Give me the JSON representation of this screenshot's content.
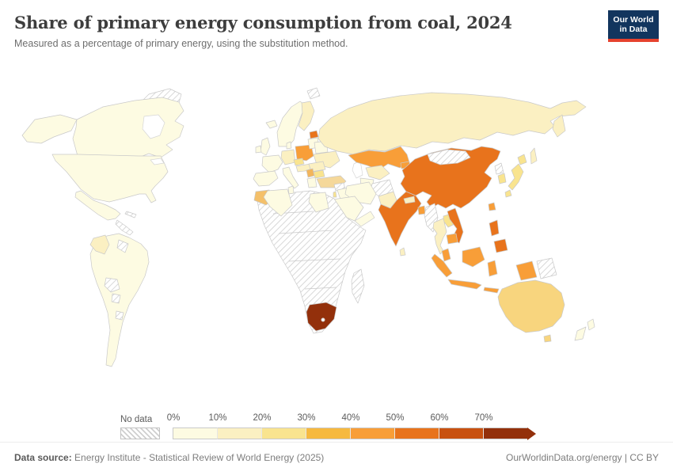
{
  "header": {
    "title": "Share of primary energy consumption from coal, 2024",
    "subtitle": "Measured as a percentage of primary energy, using the substitution method.",
    "logo": {
      "line1": "Our World",
      "line2": "in Data",
      "bg_color": "#12355e",
      "bar_color": "#e6422e"
    }
  },
  "legend": {
    "no_data_label": "No data",
    "bins": [
      {
        "tick": "0%",
        "range": "0-10%",
        "color": "#FDFBE2"
      },
      {
        "tick": "10%",
        "range": "10-20%",
        "color": "#FBF0C2"
      },
      {
        "tick": "20%",
        "range": "20-30%",
        "color": "#F9E48F"
      },
      {
        "tick": "30%",
        "range": "30-40%",
        "color": "#F6B93F"
      },
      {
        "tick": "40%",
        "range": "40-50%",
        "color": "#F89E38"
      },
      {
        "tick": "50%",
        "range": "50-60%",
        "color": "#E8731C"
      },
      {
        "tick": "60%",
        "range": "60-70%",
        "color": "#C85110"
      },
      {
        "tick": "70%",
        "range": "70%+",
        "color": "#93300B"
      }
    ]
  },
  "chart_data": {
    "type": "choropleth_map",
    "title": "Share of primary energy consumption from coal, 2024",
    "unit": "% of primary energy",
    "legend_bins": [
      "0-10%",
      "10-20%",
      "20-30%",
      "30-40%",
      "40-50%",
      "50-60%",
      "60-70%",
      "70%+",
      "No data"
    ],
    "countries": [
      {
        "id": "canada",
        "name": "Canada",
        "bin": "0-10%"
      },
      {
        "id": "usa",
        "name": "United States",
        "bin": "0-10%"
      },
      {
        "id": "alaska",
        "name": "United States (Alaska)",
        "bin": "0-10%"
      },
      {
        "id": "mexico",
        "name": "Mexico",
        "bin": "0-10%"
      },
      {
        "id": "greenland",
        "name": "Greenland",
        "bin": "No data"
      },
      {
        "id": "cuba",
        "name": "Cuba & Caribbean",
        "bin": "No data"
      },
      {
        "id": "central-america",
        "name": "Central America",
        "bin": "No data"
      },
      {
        "id": "south-america",
        "name": "South America (Brazil, Argentina, Peru, Chile, Ecuador, Venezuela)",
        "bin": "0-10%"
      },
      {
        "id": "colombia",
        "name": "Colombia",
        "bin": "10-20%"
      },
      {
        "id": "guyanas",
        "name": "Guyana & Suriname",
        "bin": "No data"
      },
      {
        "id": "bolivia",
        "name": "Bolivia",
        "bin": "No data"
      },
      {
        "id": "paraguay",
        "name": "Paraguay",
        "bin": "No data"
      },
      {
        "id": "uruguay",
        "name": "Uruguay",
        "bin": "No data"
      },
      {
        "id": "iceland",
        "name": "Iceland",
        "bin": "0-10%"
      },
      {
        "id": "norway-sweden",
        "name": "Norway & Sweden",
        "bin": "0-10%"
      },
      {
        "id": "finland",
        "name": "Finland",
        "bin": "10-20%"
      },
      {
        "id": "uk",
        "name": "United Kingdom",
        "bin": "0-10%"
      },
      {
        "id": "ireland",
        "name": "Ireland",
        "bin": "0-10%"
      },
      {
        "id": "denmark",
        "name": "Denmark",
        "bin": "0-10%"
      },
      {
        "id": "germany",
        "name": "Germany",
        "bin": "10-20%"
      },
      {
        "id": "france",
        "name": "France",
        "bin": "0-10%"
      },
      {
        "id": "iberia",
        "name": "Spain & Portugal",
        "bin": "0-10%"
      },
      {
        "id": "italy",
        "name": "Italy",
        "bin": "0-10%"
      },
      {
        "id": "poland",
        "name": "Poland",
        "bin": "40-50%"
      },
      {
        "id": "czechia",
        "name": "Czechia",
        "bin": "20-30%"
      },
      {
        "id": "slovakia-hungary",
        "name": "Slovakia, Hungary & Austria",
        "bin": "10-20%"
      },
      {
        "id": "estonia",
        "name": "Estonia",
        "bin": "50-60%"
      },
      {
        "id": "latvia-lithuania",
        "name": "Latvia & Lithuania",
        "bin": "0-10%"
      },
      {
        "id": "belarus",
        "name": "Belarus",
        "bin": "0-10%"
      },
      {
        "id": "ukraine",
        "name": "Ukraine",
        "bin": "10-20%"
      },
      {
        "id": "romania",
        "name": "Romania",
        "bin": "10-20%"
      },
      {
        "id": "serbia",
        "name": "Serbia",
        "bin": "30-40%",
        "color": "#F2B55C"
      },
      {
        "id": "bulgaria",
        "name": "Bulgaria",
        "bin": "20-30%"
      },
      {
        "id": "greece",
        "name": "Greece",
        "bin": "0-10%"
      },
      {
        "id": "turkey",
        "name": "Turkey",
        "bin": "20-30%",
        "color": "#F5D89A"
      },
      {
        "id": "russia",
        "name": "Russia",
        "bin": "10-20%"
      },
      {
        "id": "kazakhstan",
        "name": "Kazakhstan",
        "bin": "40-50%"
      },
      {
        "id": "uzbekistan",
        "name": "Uzbekistan",
        "bin": "10-20%"
      },
      {
        "id": "turkmenistan",
        "name": "Turkmenistan",
        "bin": "0-10%"
      },
      {
        "id": "kyrgyzstan",
        "name": "Kyrgyzstan",
        "bin": "40-50%"
      },
      {
        "id": "afghanistan",
        "name": "Afghanistan",
        "bin": "No data"
      },
      {
        "id": "iran",
        "name": "Iran",
        "bin": "0-10%"
      },
      {
        "id": "iraq",
        "name": "Iraq",
        "bin": "0-10%"
      },
      {
        "id": "syria",
        "name": "Syria",
        "bin": "No data"
      },
      {
        "id": "israel",
        "name": "Israel",
        "bin": "20-30%"
      },
      {
        "id": "saudi-arabia",
        "name": "Saudi Arabia",
        "bin": "0-10%"
      },
      {
        "id": "yemen-oman",
        "name": "Yemen & Oman",
        "bin": "0-10%"
      },
      {
        "id": "pakistan",
        "name": "Pakistan",
        "bin": "10-20%"
      },
      {
        "id": "india",
        "name": "India",
        "bin": "50-60%"
      },
      {
        "id": "nepal",
        "name": "Nepal",
        "bin": "10-20%"
      },
      {
        "id": "sri-lanka",
        "name": "Sri Lanka",
        "bin": "10-20%"
      },
      {
        "id": "bangladesh",
        "name": "Bangladesh",
        "bin": "40-50%"
      },
      {
        "id": "myanmar",
        "name": "Myanmar",
        "bin": "No data"
      },
      {
        "id": "thailand",
        "name": "Thailand",
        "bin": "10-20%"
      },
      {
        "id": "laos",
        "name": "Laos",
        "bin": "20-30%"
      },
      {
        "id": "vietnam",
        "name": "Vietnam",
        "bin": "50-60%"
      },
      {
        "id": "cambodia",
        "name": "Cambodia",
        "bin": "40-50%"
      },
      {
        "id": "malaysia",
        "name": "Malaysia",
        "bin": "40-50%"
      },
      {
        "id": "indonesia",
        "name": "Indonesia",
        "bin": "40-50%"
      },
      {
        "id": "philippines",
        "name": "Philippines",
        "bin": "50-60%"
      },
      {
        "id": "taiwan",
        "name": "Taiwan",
        "bin": "40-50%"
      },
      {
        "id": "china",
        "name": "China",
        "bin": "50-60%"
      },
      {
        "id": "mongolia",
        "name": "Mongolia",
        "bin": "No data"
      },
      {
        "id": "north-korea",
        "name": "North Korea",
        "bin": "No data"
      },
      {
        "id": "south-korea",
        "name": "South Korea",
        "bin": "20-30%"
      },
      {
        "id": "japan",
        "name": "Japan",
        "bin": "20-30%"
      },
      {
        "id": "morocco",
        "name": "Morocco",
        "bin": "30-40%",
        "color": "#F4C06A"
      },
      {
        "id": "algeria",
        "name": "Algeria",
        "bin": "0-10%"
      },
      {
        "id": "tunisia",
        "name": "Tunisia",
        "bin": "0-10%"
      },
      {
        "id": "egypt",
        "name": "Egypt",
        "bin": "0-10%"
      },
      {
        "id": "africa-nodata",
        "name": "Sub-Saharan Africa, Libya & others",
        "bin": "No data"
      },
      {
        "id": "south-africa",
        "name": "South Africa",
        "bin": "70%+"
      },
      {
        "id": "madagascar",
        "name": "Madagascar",
        "bin": "No data"
      },
      {
        "id": "svalbard",
        "name": "Svalbard",
        "bin": "No data"
      },
      {
        "id": "australia",
        "name": "Australia",
        "bin": "20-30%",
        "color": "#F8D57E"
      },
      {
        "id": "new-zealand",
        "name": "New Zealand",
        "bin": "0-10%"
      },
      {
        "id": "papua-new-guinea",
        "name": "Papua New Guinea",
        "bin": "No data"
      }
    ]
  },
  "footer": {
    "source_label": "Data source:",
    "source_text": " Energy Institute - Statistical Review of World Energy (2025)",
    "right_text": "OurWorldinData.org/energy | CC BY"
  }
}
